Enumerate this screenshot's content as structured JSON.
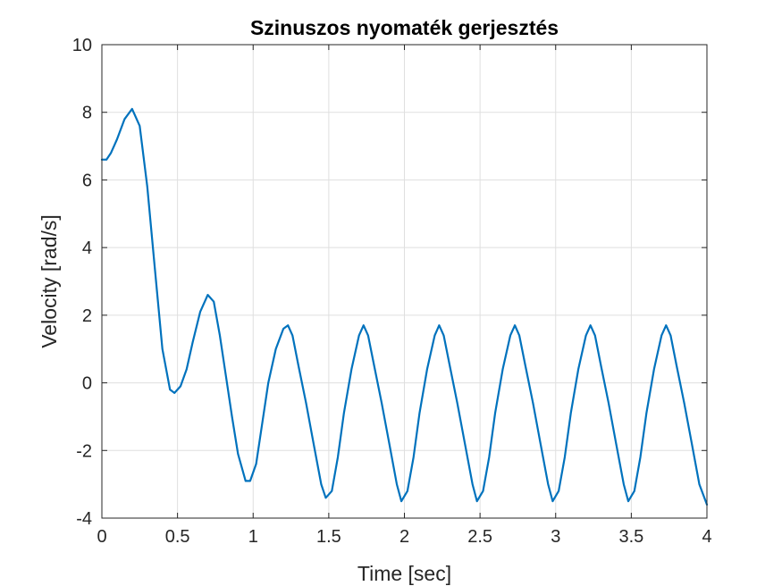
{
  "chart_data": {
    "type": "line",
    "title": "Szinuszos nyomaték gerjesztés",
    "xlabel": "Time [sec]",
    "ylabel": "Velocity [rad/s]",
    "xlim": [
      0,
      4
    ],
    "ylim": [
      -4,
      10
    ],
    "xticks": [
      0,
      0.5,
      1,
      1.5,
      2,
      2.5,
      3,
      3.5,
      4
    ],
    "xtick_labels": [
      "0",
      "0.5",
      "1",
      "1.5",
      "2",
      "2.5",
      "3",
      "3.5",
      "4"
    ],
    "yticks": [
      -4,
      -2,
      0,
      2,
      4,
      6,
      8,
      10
    ],
    "ytick_labels": [
      "-4",
      "-2",
      "0",
      "2",
      "4",
      "6",
      "8",
      "10"
    ],
    "grid": true,
    "legend": "none",
    "series": [
      {
        "color": "#0072BD",
        "x": [
          0,
          0.03,
          0.06,
          0.1,
          0.15,
          0.2,
          0.25,
          0.3,
          0.35,
          0.4,
          0.45,
          0.48,
          0.52,
          0.56,
          0.6,
          0.65,
          0.7,
          0.74,
          0.78,
          0.82,
          0.86,
          0.9,
          0.95,
          0.98,
          1.02,
          1.06,
          1.1,
          1.15,
          1.2,
          1.23,
          1.26,
          1.3,
          1.35,
          1.4,
          1.45,
          1.48,
          1.52,
          1.56,
          1.6,
          1.65,
          1.7,
          1.73,
          1.76,
          1.8,
          1.85,
          1.9,
          1.95,
          1.98,
          2.02,
          2.06,
          2.1,
          2.15,
          2.2,
          2.23,
          2.26,
          2.3,
          2.35,
          2.4,
          2.45,
          2.48,
          2.52,
          2.56,
          2.6,
          2.65,
          2.7,
          2.73,
          2.76,
          2.8,
          2.85,
          2.9,
          2.95,
          2.98,
          3.02,
          3.06,
          3.1,
          3.15,
          3.2,
          3.23,
          3.26,
          3.3,
          3.35,
          3.4,
          3.45,
          3.48,
          3.52,
          3.56,
          3.6,
          3.65,
          3.7,
          3.73,
          3.76,
          3.8,
          3.85,
          3.9,
          3.95,
          4.0
        ],
        "y": [
          6.6,
          6.6,
          6.8,
          7.2,
          7.8,
          8.1,
          7.6,
          5.8,
          3.4,
          1.0,
          -0.2,
          -0.3,
          -0.1,
          0.4,
          1.2,
          2.1,
          2.6,
          2.4,
          1.4,
          0.2,
          -1.0,
          -2.1,
          -2.9,
          -2.9,
          -2.4,
          -1.2,
          0.0,
          1.0,
          1.6,
          1.7,
          1.4,
          0.5,
          -0.6,
          -1.8,
          -3.0,
          -3.4,
          -3.2,
          -2.2,
          -0.9,
          0.4,
          1.4,
          1.7,
          1.4,
          0.5,
          -0.6,
          -1.8,
          -3.0,
          -3.5,
          -3.2,
          -2.2,
          -0.9,
          0.4,
          1.4,
          1.7,
          1.4,
          0.5,
          -0.6,
          -1.8,
          -3.0,
          -3.5,
          -3.2,
          -2.2,
          -0.9,
          0.4,
          1.4,
          1.7,
          1.4,
          0.5,
          -0.6,
          -1.8,
          -3.0,
          -3.5,
          -3.2,
          -2.2,
          -0.9,
          0.4,
          1.4,
          1.7,
          1.4,
          0.5,
          -0.6,
          -1.8,
          -3.0,
          -3.5,
          -3.2,
          -2.2,
          -0.9,
          0.4,
          1.4,
          1.7,
          1.4,
          0.5,
          -0.6,
          -1.8,
          -3.0,
          -3.6
        ]
      }
    ]
  }
}
